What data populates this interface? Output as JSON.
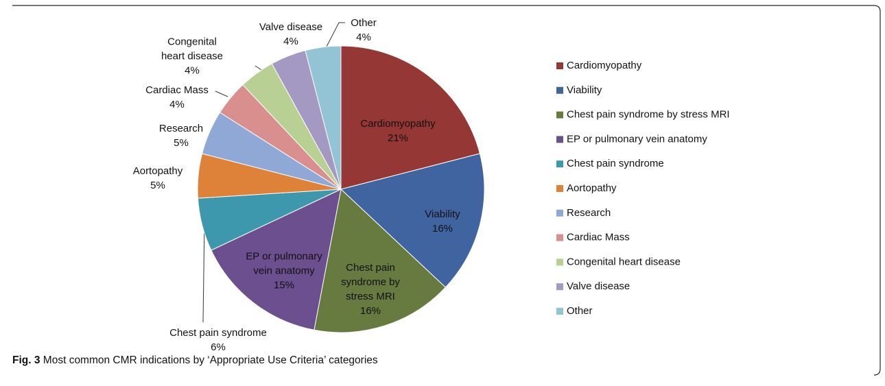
{
  "chart_data": {
    "type": "pie",
    "categories": [
      "Cardiomyopathy",
      "Viability",
      "Chest pain syndrome by stress MRI",
      "EP or pulmonary vein anatomy",
      "Chest pain syndrome",
      "Aortopathy",
      "Research",
      "Cardiac Mass",
      "Congenital heart disease",
      "Valve disease",
      "Other"
    ],
    "values": [
      21,
      16,
      16,
      15,
      6,
      5,
      5,
      4,
      4,
      4,
      4
    ],
    "value_labels": [
      "21%",
      "16%",
      "16%",
      "15%",
      "6%",
      "5%",
      "5%",
      "4%",
      "4%",
      "4%",
      "4%"
    ],
    "colors": [
      "#953735",
      "#4064a0",
      "#677a3f",
      "#6c4f8e",
      "#3e98ad",
      "#dd8238",
      "#8fa8d6",
      "#d98f8e",
      "#b9d094",
      "#a499c3",
      "#93c4d5"
    ],
    "legend": "right",
    "caption_label": "Fig. 3",
    "caption": "Most common CMR indications by ‘Appropriate Use Criteria’ categories"
  }
}
